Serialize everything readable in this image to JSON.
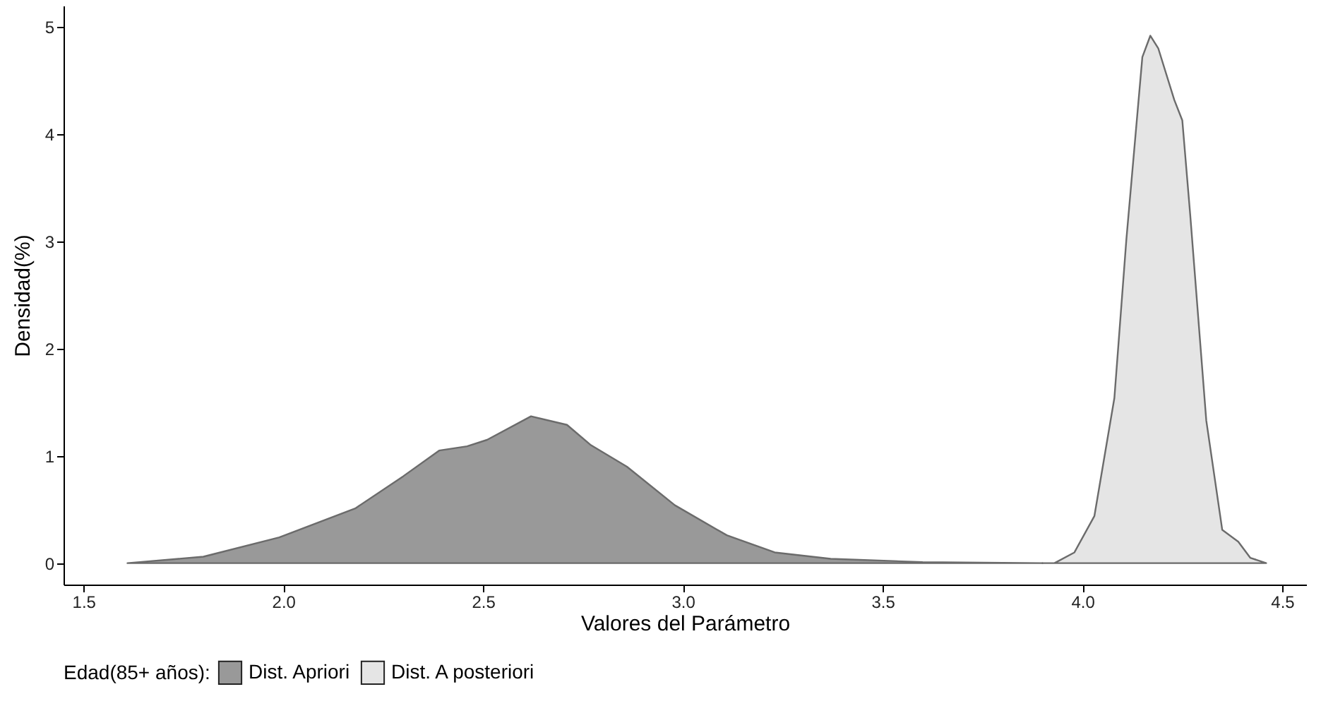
{
  "chart_data": {
    "type": "area",
    "xlabel": "Valores del Parámetro",
    "ylabel": "Densidad(%)",
    "legend_title": "Edad(85+ años):",
    "legend": "bottom",
    "grid": false,
    "xlim": [
      1.45,
      4.56
    ],
    "xticks": [
      {
        "value": 1.5,
        "label": "1.5"
      },
      {
        "value": 2,
        "label": "2.0"
      },
      {
        "value": 2.5,
        "label": "2.5"
      },
      {
        "value": 3,
        "label": "3.0"
      },
      {
        "value": 3.5,
        "label": "3.5"
      },
      {
        "value": 4,
        "label": "4.0"
      },
      {
        "value": 4.5,
        "label": "4.5"
      }
    ],
    "ylim": [
      -0.2,
      5.2
    ],
    "yticks": [
      0,
      1,
      2,
      3,
      4,
      5
    ],
    "series": [
      {
        "name": "Dist. Apriori",
        "color": "#999999",
        "x": [
          1.61,
          1.8,
          1.99,
          2.18,
          2.3,
          2.39,
          2.46,
          2.51,
          2.62,
          2.71,
          2.77,
          2.86,
          2.98,
          3.11,
          3.23,
          3.37,
          3.6,
          3.9
        ],
        "values": [
          0,
          0.06,
          0.24,
          0.51,
          0.81,
          1.05,
          1.09,
          1.15,
          1.37,
          1.29,
          1.1,
          0.9,
          0.54,
          0.26,
          0.1,
          0.04,
          0.01,
          0
        ]
      },
      {
        "name": "Dist. A posteriori",
        "color": "#e5e5e5",
        "x": [
          3.9,
          3.93,
          3.98,
          4.03,
          4.08,
          4.11,
          4.15,
          4.17,
          4.19,
          4.23,
          4.25,
          4.27,
          4.31,
          4.35,
          4.39,
          4.42,
          4.46
        ],
        "values": [
          0,
          0,
          0.1,
          0.44,
          1.54,
          3.02,
          4.72,
          4.92,
          4.8,
          4.32,
          4.13,
          3.24,
          1.33,
          0.31,
          0.2,
          0.05,
          0
        ]
      }
    ]
  }
}
